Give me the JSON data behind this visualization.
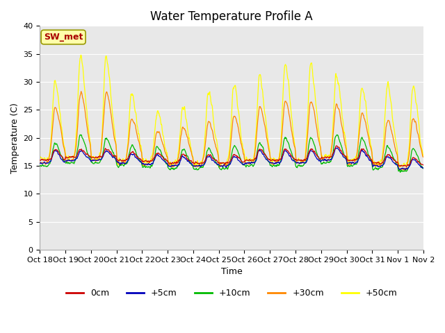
{
  "title": "Water Temperature Profile A",
  "xlabel": "Time",
  "ylabel": "Temperature (C)",
  "ylim": [
    0,
    40
  ],
  "xlim": [
    0,
    15
  ],
  "plot_bg_color": "#e8e8e8",
  "line_colors": {
    "0cm": "#cc0000",
    "+5cm": "#0000bb",
    "+10cm": "#00bb00",
    "+30cm": "#ff8800",
    "+50cm": "#ffff00"
  },
  "xtick_labels": [
    "Oct 18",
    "Oct 19",
    "Oct 20",
    "Oct 21",
    "Oct 22",
    "Oct 23",
    "Oct 24",
    "Oct 25",
    "Oct 26",
    "Oct 27",
    "Oct 28",
    "Oct 29",
    "Oct 30",
    "Oct 31",
    "Nov 1",
    "Nov 2"
  ],
  "annotation": "SW_met",
  "annotation_color": "#aa0000",
  "annotation_bg": "#ffffaa",
  "annotation_border": "#999900",
  "title_fontsize": 12,
  "axis_fontsize": 9,
  "tick_fontsize": 8
}
